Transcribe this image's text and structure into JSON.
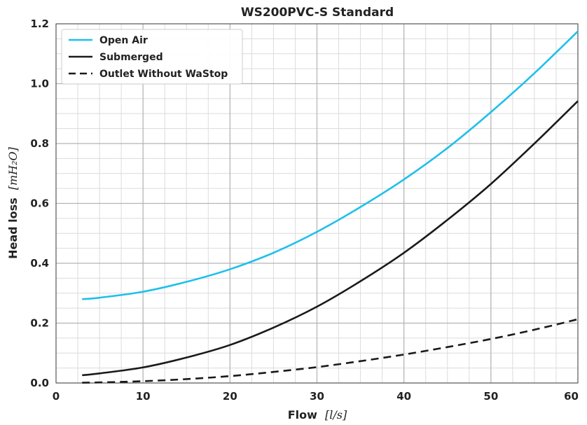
{
  "chart_data": {
    "type": "line",
    "title": "WS200PVC-S Standard",
    "xlabel": "Flow",
    "xlabel_unit": "[l/s]",
    "ylabel": "Head loss",
    "ylabel_unit": "[mH₂O]",
    "xlim": [
      0,
      60
    ],
    "ylim": [
      0,
      1.2
    ],
    "xticks": [
      "0",
      "10",
      "20",
      "30",
      "40",
      "50",
      "60"
    ],
    "yticks": [
      "0.0",
      "0.2",
      "0.4",
      "0.6",
      "0.8",
      "1.0",
      "1.2"
    ],
    "grid": true,
    "legend_position": "top-left",
    "series": [
      {
        "name": "Open Air",
        "color": "#1ec0ea",
        "dash": "solid",
        "x": [
          3,
          5,
          10,
          15,
          20,
          25,
          30,
          35,
          40,
          45,
          50,
          55,
          60
        ],
        "y": [
          0.28,
          0.285,
          0.305,
          0.338,
          0.38,
          0.435,
          0.505,
          0.588,
          0.68,
          0.785,
          0.905,
          1.035,
          1.175
        ]
      },
      {
        "name": "Submerged",
        "color": "#1a1a1a",
        "dash": "solid",
        "x": [
          3,
          5,
          10,
          15,
          20,
          25,
          30,
          35,
          40,
          45,
          50,
          55,
          60
        ],
        "y": [
          0.026,
          0.032,
          0.052,
          0.085,
          0.127,
          0.185,
          0.255,
          0.34,
          0.435,
          0.545,
          0.665,
          0.8,
          0.942
        ]
      },
      {
        "name": "Outlet Without WaStop",
        "color": "#1a1a1a",
        "dash": "dashed",
        "x": [
          3,
          5,
          10,
          15,
          20,
          25,
          30,
          35,
          40,
          45,
          50,
          55,
          60
        ],
        "y": [
          0.001,
          0.002,
          0.006,
          0.013,
          0.023,
          0.037,
          0.053,
          0.073,
          0.095,
          0.12,
          0.147,
          0.178,
          0.213
        ]
      }
    ]
  }
}
